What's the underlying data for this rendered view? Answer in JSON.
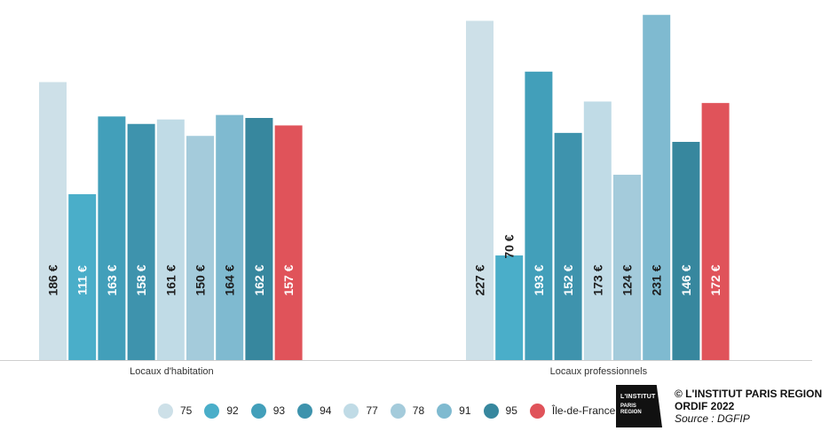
{
  "chart_data": {
    "type": "bar",
    "categories": [
      "Locaux d'habitation",
      "Locaux professionnels"
    ],
    "series": [
      {
        "name": "75",
        "color": "#cde0e8",
        "values": [
          186,
          227
        ]
      },
      {
        "name": "92",
        "color": "#4aaec9",
        "values": [
          111,
          70
        ]
      },
      {
        "name": "93",
        "color": "#429fba",
        "values": [
          163,
          193
        ]
      },
      {
        "name": "94",
        "color": "#3e93ad",
        "values": [
          158,
          152
        ]
      },
      {
        "name": "77",
        "color": "#c0dbe6",
        "values": [
          161,
          173
        ]
      },
      {
        "name": "78",
        "color": "#a4cbdb",
        "values": [
          150,
          124
        ]
      },
      {
        "name": "91",
        "color": "#7fbad0",
        "values": [
          164,
          231
        ]
      },
      {
        "name": "95",
        "color": "#37879e",
        "values": [
          162,
          146
        ]
      },
      {
        "name": "Île-de-France",
        "color": "#e0535a",
        "values": [
          157,
          172
        ]
      }
    ],
    "data_labels": [
      [
        "186 €",
        "111 €",
        "163 €",
        "158 €",
        "161 €",
        "150 €",
        "164 €",
        "162 €",
        "157 €"
      ],
      [
        "227 €",
        "70 €",
        "193 €",
        "152 €",
        "173 €",
        "124 €",
        "231 €",
        "146 €",
        "172 €"
      ]
    ],
    "ylim": [
      0,
      235
    ],
    "legend_position": "bottom",
    "grid": false,
    "xlabel": "",
    "ylabel": ""
  },
  "legend": {
    "items": [
      {
        "label": "75",
        "color": "#cde0e8"
      },
      {
        "label": "92",
        "color": "#4aaec9"
      },
      {
        "label": "93",
        "color": "#429fba"
      },
      {
        "label": "94",
        "color": "#3e93ad"
      },
      {
        "label": "77",
        "color": "#c0dbe6"
      },
      {
        "label": "78",
        "color": "#a4cbdb"
      },
      {
        "label": "91",
        "color": "#7fbad0"
      },
      {
        "label": "95",
        "color": "#37879e"
      },
      {
        "label": "Île-de-France",
        "color": "#e0535a"
      }
    ]
  },
  "logo": {
    "line1": "L'INSTITUT",
    "line2": "PARIS REGION",
    "icon": "institut-paris-region-logo-icon"
  },
  "credits": {
    "copyright": "© L'INSTITUT PARIS REGION",
    "ordif": "ORDIF 2022",
    "source": "Source : DGFIP"
  }
}
